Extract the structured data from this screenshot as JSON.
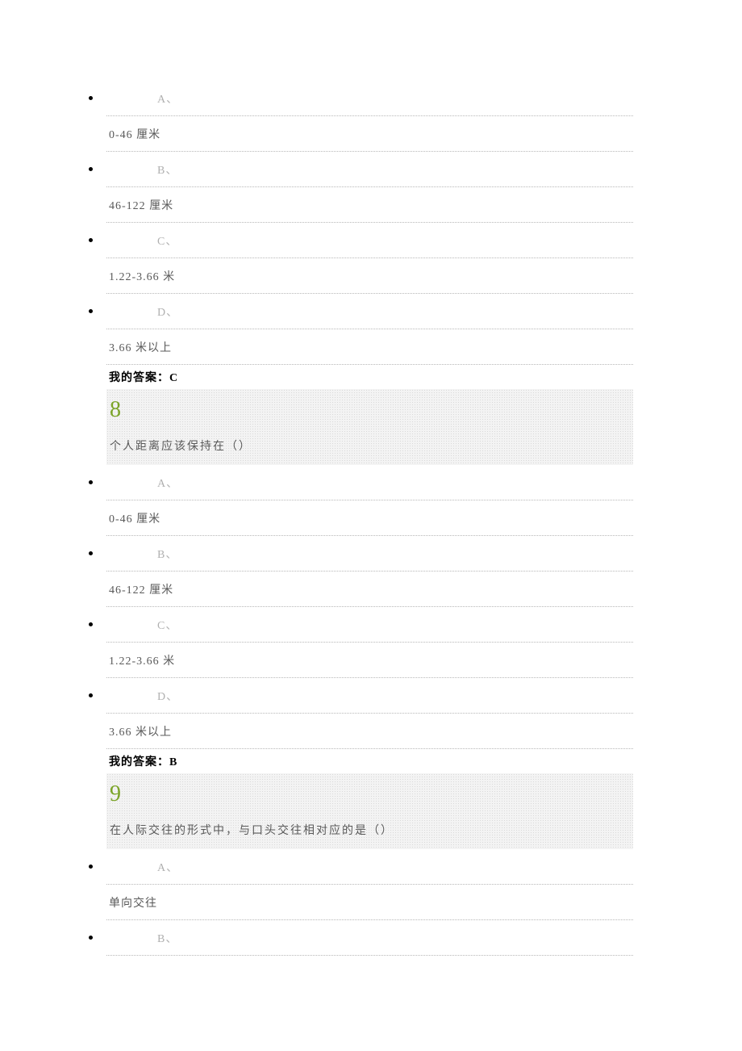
{
  "q7": {
    "options": [
      {
        "label": "A、",
        "text": "0-46 厘米"
      },
      {
        "label": "B、",
        "text": "46-122 厘米"
      },
      {
        "label": "C、",
        "text": "1.22-3.66 米"
      },
      {
        "label": "D、",
        "text": "3.66 米以上"
      }
    ],
    "my_answer": "我的答案：C"
  },
  "q8": {
    "number": "8",
    "text": "个人距离应该保持在（）",
    "options": [
      {
        "label": "A、",
        "text": "0-46 厘米"
      },
      {
        "label": "B、",
        "text": "46-122 厘米"
      },
      {
        "label": "C、",
        "text": "1.22-3.66 米"
      },
      {
        "label": "D、",
        "text": "3.66 米以上"
      }
    ],
    "my_answer": "我的答案：B"
  },
  "q9": {
    "number": "9",
    "text": "在人际交往的形式中，与口头交往相对应的是（）",
    "options": [
      {
        "label": "A、",
        "text": "单向交往"
      },
      {
        "label": "B、",
        "text": ""
      }
    ]
  },
  "colors": {
    "text_gray": "#595959",
    "label_gray": "#b0b0b0",
    "green": "#7ba428",
    "dotted": "#b8b8b8",
    "bg_block": "#f3f3f3"
  }
}
